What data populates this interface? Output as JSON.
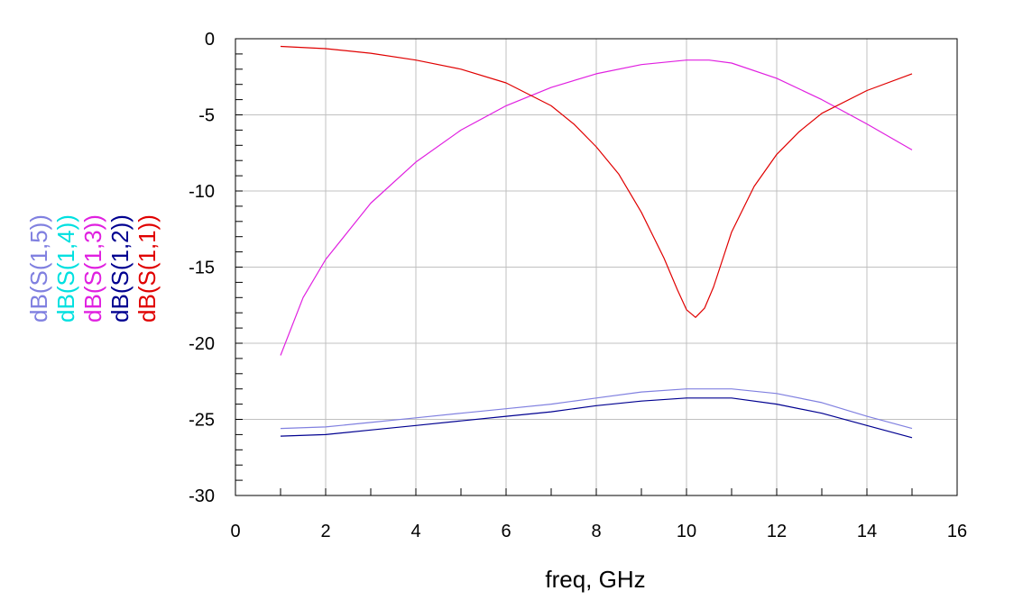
{
  "chart_data": {
    "type": "line",
    "xlabel": "freq, GHz",
    "ylabel": "",
    "xlim": [
      0,
      16
    ],
    "ylim": [
      -30,
      0
    ],
    "x_ticks": [
      "0",
      "2",
      "4",
      "6",
      "8",
      "10",
      "12",
      "14",
      "16"
    ],
    "y_ticks": [
      "0",
      "-5",
      "-10",
      "-15",
      "-20",
      "-25",
      "-30"
    ],
    "grid": true,
    "legend_position": "left, rotated vertical",
    "series": [
      {
        "name": "dB(S(1,5))",
        "color": "#8080e0",
        "x": [
          1,
          2,
          3,
          4,
          5,
          6,
          7,
          8,
          9,
          10,
          11,
          12,
          13,
          14,
          15
        ],
        "y": [
          -25.6,
          -25.5,
          -25.2,
          -24.9,
          -24.6,
          -24.3,
          -24.0,
          -23.6,
          -23.2,
          -23.0,
          -23.0,
          -23.3,
          -23.9,
          -24.8,
          -25.6
        ]
      },
      {
        "name": "dB(S(1,4))",
        "color": "#00e0e0",
        "x": [],
        "y": []
      },
      {
        "name": "dB(S(1,3))",
        "color": "#e020e0",
        "x": [
          1,
          1.5,
          2,
          3,
          4,
          5,
          6,
          7,
          8,
          9,
          10,
          10.5,
          11,
          12,
          13,
          14,
          15
        ],
        "y": [
          -20.8,
          -17.0,
          -14.5,
          -10.8,
          -8.1,
          -6.0,
          -4.4,
          -3.2,
          -2.3,
          -1.7,
          -1.4,
          -1.4,
          -1.6,
          -2.6,
          -4.0,
          -5.6,
          -7.3
        ]
      },
      {
        "name": "dB(S(1,2))",
        "color": "#000090",
        "x": [
          1,
          2,
          3,
          4,
          5,
          6,
          7,
          8,
          9,
          10,
          11,
          12,
          13,
          14,
          15
        ],
        "y": [
          -26.1,
          -26.0,
          -25.7,
          -25.4,
          -25.1,
          -24.8,
          -24.5,
          -24.1,
          -23.8,
          -23.6,
          -23.6,
          -24.0,
          -24.6,
          -25.4,
          -26.2
        ]
      },
      {
        "name": "dB(S(1,1))",
        "color": "#e00000",
        "x": [
          1,
          2,
          3,
          4,
          5,
          6,
          7,
          7.5,
          8,
          8.5,
          9,
          9.5,
          9.8,
          10,
          10.2,
          10.4,
          10.6,
          11,
          11.5,
          12,
          12.5,
          13,
          14,
          15
        ],
        "y": [
          -0.5,
          -0.65,
          -0.95,
          -1.4,
          -2.0,
          -2.9,
          -4.4,
          -5.6,
          -7.1,
          -8.9,
          -11.4,
          -14.4,
          -16.5,
          -17.8,
          -18.3,
          -17.7,
          -16.3,
          -12.7,
          -9.7,
          -7.6,
          -6.1,
          -4.9,
          -3.4,
          -2.3
        ]
      }
    ]
  }
}
